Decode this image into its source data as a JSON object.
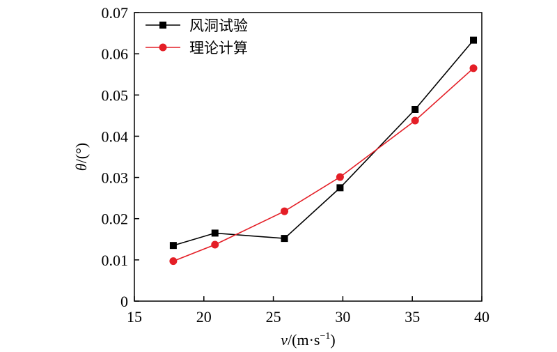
{
  "chart_data": {
    "type": "line",
    "xlabel": {
      "var": "v",
      "unit_open": "/(m·s",
      "exp": "−1",
      "unit_close": ")"
    },
    "ylabel": "θ/(°)",
    "xlim": [
      15,
      40
    ],
    "ylim": [
      0,
      0.07
    ],
    "xticks": [
      "15",
      "20",
      "25",
      "30",
      "35",
      "40"
    ],
    "yticks": [
      "0",
      "0.01",
      "0.02",
      "0.03",
      "0.04",
      "0.05",
      "0.06",
      "0.07"
    ],
    "legend_position": "top-left",
    "grid": false,
    "series": [
      {
        "name": "风洞试验",
        "color": "#000000",
        "marker": "square",
        "x": [
          17.8,
          20.8,
          25.8,
          29.8,
          35.2,
          39.4
        ],
        "y": [
          0.0135,
          0.0165,
          0.0152,
          0.0275,
          0.0465,
          0.0633
        ]
      },
      {
        "name": "理论计算",
        "color": "#e41e26",
        "marker": "circle",
        "x": [
          17.8,
          20.8,
          25.8,
          29.8,
          35.2,
          39.4
        ],
        "y": [
          0.0097,
          0.0137,
          0.0218,
          0.0301,
          0.0438,
          0.0565
        ]
      }
    ]
  }
}
